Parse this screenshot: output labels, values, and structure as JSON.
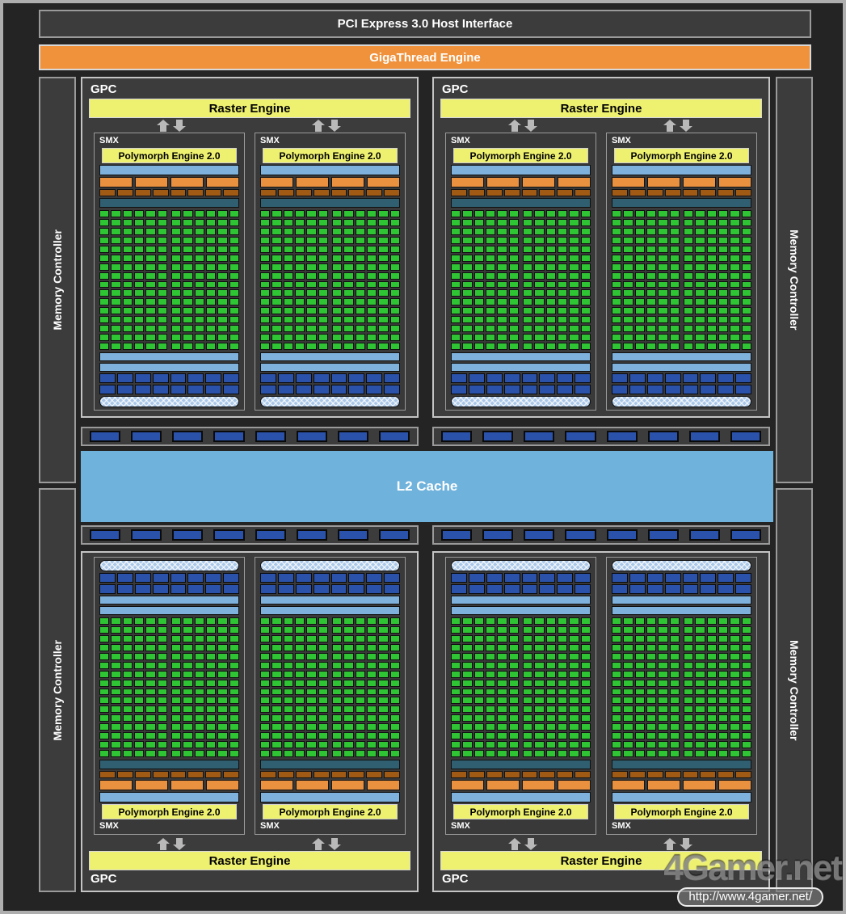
{
  "chip": {
    "pci_label": "PCI Express 3.0 Host Interface",
    "gigathread_label": "GigaThread Engine",
    "l2_label": "L2 Cache",
    "memory_controller_label": "Memory Controller",
    "gpc_label": "GPC",
    "raster_label": "Raster Engine",
    "smx_label": "SMX",
    "polymorph_label": "Polymorph Engine 2.0"
  },
  "structure": {
    "gpc_count": 4,
    "smx_per_gpc": 2,
    "memory_controller_count": 4,
    "core_grid": {
      "rows": 16,
      "cols": 12,
      "cols_per_group": 6
    },
    "orange_blocks_per_row": 4,
    "brown_blocks_per_row": 8,
    "blue_block_rows_per_smx": 2,
    "blue_blocks_per_row": 8,
    "crossbar_strip_count": 4,
    "blocks_per_strip": 8,
    "smx_row_order_top": [
      "smx-label",
      "polymorph",
      "lightblue",
      "orange",
      "brown",
      "teal",
      "cores",
      "lightblue-thin",
      "lightblue-thin",
      "blue",
      "blue",
      "hatch"
    ]
  },
  "colors": {
    "background": "#242424",
    "frame_border": "#aeaeae",
    "box_fill": "#3c3c3c",
    "box_border": "#9a9a9a",
    "gigathread_orange": "#f0923c",
    "yellow_bar": "#eef170",
    "light_blue_bar": "#7eb2dd",
    "l2_blue": "#6fb2dc",
    "orange_block": "#ea9140",
    "brown_block": "#a05a14",
    "teal_bar": "#2f5f70",
    "core_green": "#2fc433",
    "dark_blue_block": "#2a52aa",
    "hatched_bar": "#a9c7e8",
    "arrow_gray": "#b9b9b9"
  },
  "watermark": {
    "logo": "4Gamer.net",
    "url": "http://www.4gamer.net/"
  }
}
